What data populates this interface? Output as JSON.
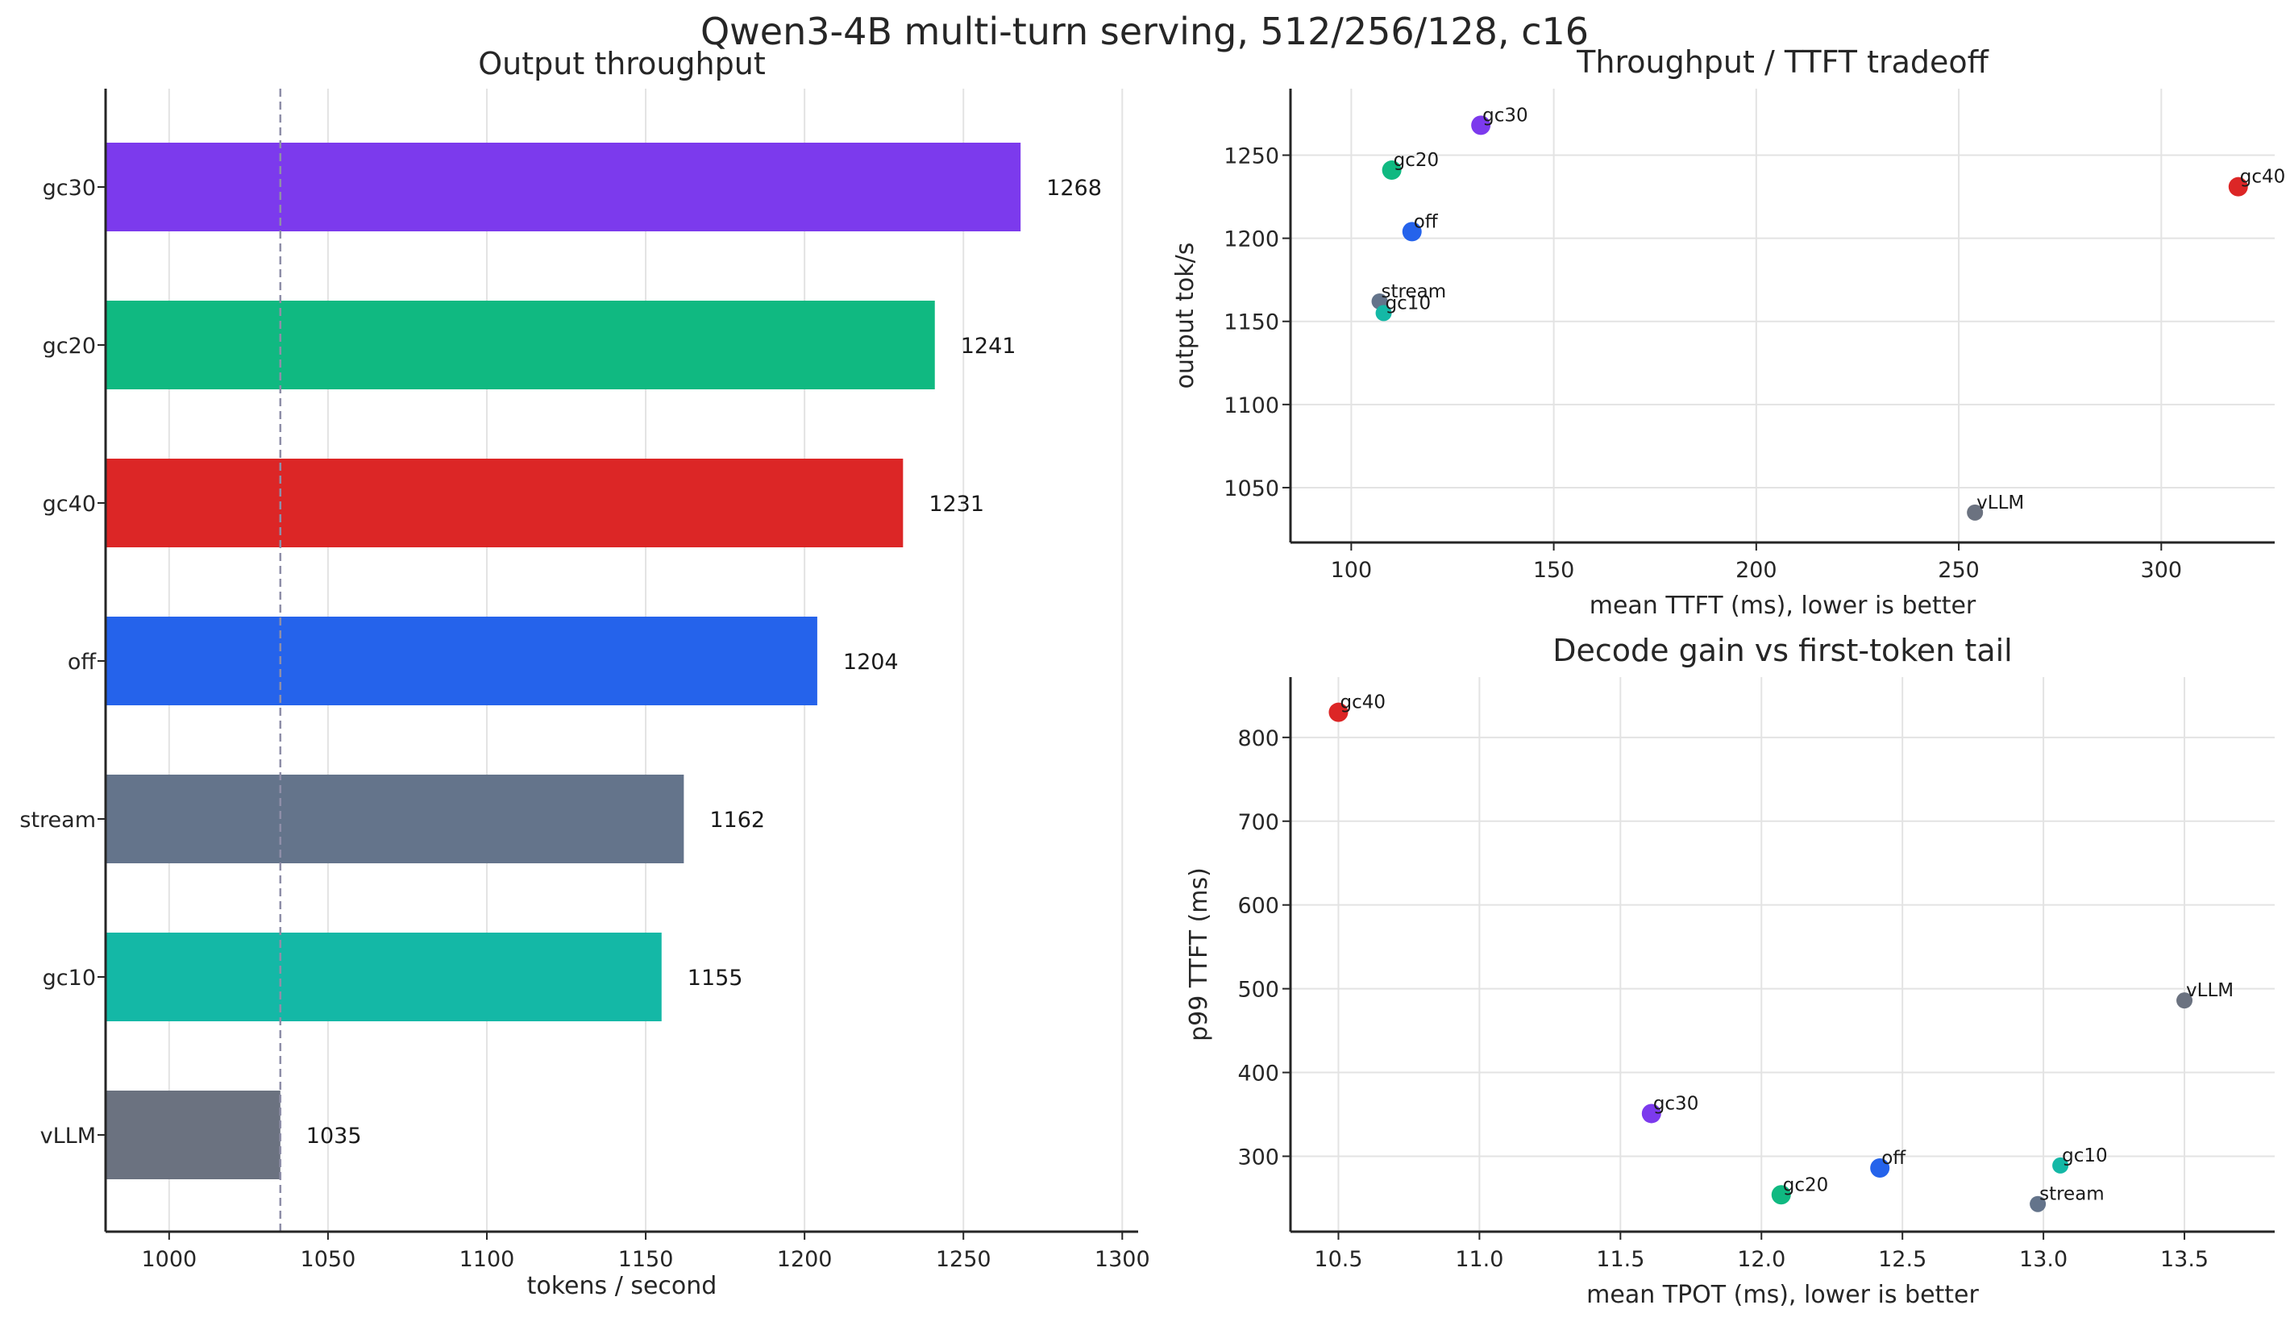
{
  "title": "Qwen3-4B multi-turn serving, 512/256/128, c16",
  "chart_data": [
    {
      "type": "bar",
      "orientation": "horizontal",
      "title": "Output throughput",
      "xlabel": "tokens / second",
      "ylabel": "",
      "xlim": [
        980,
        1305
      ],
      "xticks": [
        1000,
        1050,
        1100,
        1150,
        1200,
        1250,
        1300
      ],
      "reference_line": 1035,
      "grid": "x",
      "categories": [
        "gc30",
        "gc20",
        "gc40",
        "off",
        "stream",
        "gc10",
        "vLLM"
      ],
      "values": [
        1268,
        1241,
        1231,
        1204,
        1162,
        1155,
        1035
      ],
      "colors": [
        "#7c3aed",
        "#10b981",
        "#dc2626",
        "#2563eb",
        "#64748b",
        "#14b8a6",
        "#6b7280"
      ]
    },
    {
      "type": "scatter",
      "title": "Throughput / TTFT tradeoff",
      "xlabel": "mean TTFT (ms), lower is better",
      "ylabel": "output tok/s",
      "xlim": [
        85,
        328
      ],
      "ylim": [
        1017,
        1290
      ],
      "xticks": [
        100,
        150,
        200,
        250,
        300
      ],
      "yticks": [
        1050,
        1100,
        1150,
        1200,
        1250
      ],
      "grid": true,
      "points": [
        {
          "label": "gc30",
          "x": 132,
          "y": 1268,
          "color": "#7c3aed",
          "size": "large"
        },
        {
          "label": "gc20",
          "x": 110,
          "y": 1241,
          "color": "#10b981",
          "size": "large"
        },
        {
          "label": "gc40",
          "x": 319,
          "y": 1231,
          "color": "#dc2626",
          "size": "large"
        },
        {
          "label": "off",
          "x": 115,
          "y": 1204,
          "color": "#2563eb",
          "size": "large"
        },
        {
          "label": "stream",
          "x": 107,
          "y": 1162,
          "color": "#64748b",
          "size": "small"
        },
        {
          "label": "gc10",
          "x": 108,
          "y": 1155,
          "color": "#14b8a6",
          "size": "small"
        },
        {
          "label": "vLLM",
          "x": 254,
          "y": 1035,
          "color": "#6b7280",
          "size": "small"
        }
      ]
    },
    {
      "type": "scatter",
      "title": "Decode gain vs first-token tail",
      "xlabel": "mean TPOT (ms), lower is better",
      "ylabel": "p99 TTFT (ms)",
      "xlim": [
        10.33,
        13.82
      ],
      "ylim": [
        210,
        872
      ],
      "xticks": [
        10.5,
        11.0,
        11.5,
        12.0,
        12.5,
        13.0,
        13.5
      ],
      "xtick_labels": [
        "10.5",
        "11.0",
        "11.5",
        "12.0",
        "12.5",
        "13.0",
        "13.5"
      ],
      "yticks": [
        300,
        400,
        500,
        600,
        700,
        800
      ],
      "grid": true,
      "points": [
        {
          "label": "gc40",
          "x": 10.5,
          "y": 830,
          "color": "#dc2626",
          "size": "large"
        },
        {
          "label": "vLLM",
          "x": 13.5,
          "y": 486,
          "color": "#6b7280",
          "size": "small"
        },
        {
          "label": "gc30",
          "x": 11.61,
          "y": 351,
          "color": "#7c3aed",
          "size": "large"
        },
        {
          "label": "off",
          "x": 12.42,
          "y": 286,
          "color": "#2563eb",
          "size": "large"
        },
        {
          "label": "gc10",
          "x": 13.06,
          "y": 289,
          "color": "#14b8a6",
          "size": "small"
        },
        {
          "label": "gc20",
          "x": 12.07,
          "y": 254,
          "color": "#10b981",
          "size": "large"
        },
        {
          "label": "stream",
          "x": 12.98,
          "y": 243,
          "color": "#64748b",
          "size": "small"
        }
      ]
    }
  ]
}
